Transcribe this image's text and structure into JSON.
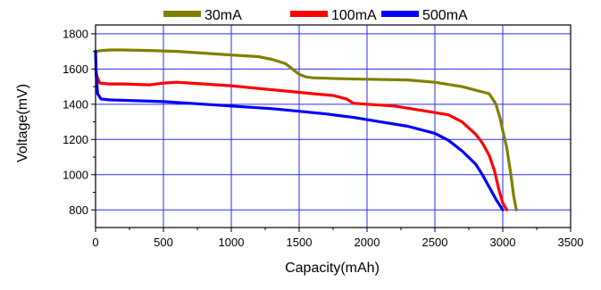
{
  "chart_data": {
    "type": "line",
    "title": "",
    "xlabel": "Capacity(mAh)",
    "ylabel": "Voltage(mV)",
    "xlim": [
      0,
      3500
    ],
    "ylim": [
      700,
      1850
    ],
    "x_ticks": [
      0,
      500,
      1000,
      1500,
      2000,
      2500,
      3000,
      3500
    ],
    "y_ticks": [
      800,
      1000,
      1200,
      1400,
      1600,
      1800
    ],
    "grid": true,
    "legend_position": "top-center",
    "series": [
      {
        "name": "30mA",
        "color": "#808000",
        "x": [
          0,
          50,
          100,
          200,
          400,
          600,
          800,
          1000,
          1200,
          1300,
          1400,
          1450,
          1500,
          1550,
          1600,
          1800,
          2000,
          2300,
          2500,
          2700,
          2900,
          2950,
          2980,
          3000,
          3030,
          3060,
          3080,
          3100
        ],
        "y": [
          1700,
          1705,
          1708,
          1708,
          1705,
          1700,
          1690,
          1680,
          1670,
          1655,
          1630,
          1600,
          1570,
          1555,
          1550,
          1545,
          1542,
          1538,
          1525,
          1500,
          1460,
          1400,
          1320,
          1250,
          1150,
          1000,
          880,
          800
        ]
      },
      {
        "name": "100mA",
        "color": "#ff0000",
        "x": [
          0,
          10,
          30,
          100,
          200,
          400,
          500,
          600,
          800,
          1000,
          1200,
          1400,
          1600,
          1750,
          1850,
          1900,
          2000,
          2200,
          2400,
          2600,
          2700,
          2800,
          2850,
          2900,
          2940,
          2970,
          3000,
          3030
        ],
        "y": [
          1600,
          1560,
          1520,
          1515,
          1515,
          1510,
          1520,
          1525,
          1515,
          1505,
          1490,
          1475,
          1460,
          1450,
          1430,
          1405,
          1400,
          1390,
          1365,
          1340,
          1300,
          1230,
          1180,
          1110,
          1020,
          920,
          840,
          800
        ]
      },
      {
        "name": "500mA",
        "color": "#0000ff",
        "x": [
          0,
          5,
          15,
          40,
          100,
          300,
          500,
          700,
          900,
          1100,
          1300,
          1500,
          1700,
          1900,
          2100,
          2300,
          2500,
          2600,
          2700,
          2800,
          2850,
          2900,
          2950,
          3000
        ],
        "y": [
          1700,
          1560,
          1460,
          1430,
          1425,
          1420,
          1415,
          1405,
          1395,
          1385,
          1375,
          1360,
          1345,
          1325,
          1300,
          1275,
          1235,
          1195,
          1135,
          1060,
          1000,
          930,
          860,
          800
        ]
      }
    ]
  }
}
